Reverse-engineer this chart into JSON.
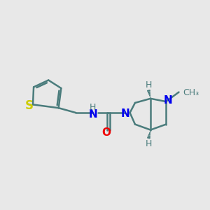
{
  "bg_color": "#e8e8e8",
  "bond_color": "#4a7c7c",
  "bond_width": 1.8,
  "wedge_color": "#4a7c7c",
  "N_color": "#0000ee",
  "O_color": "#ee0000",
  "S_color": "#cccc00",
  "C_color": "#4a7c7c",
  "font_size": 10,
  "small_font_size": 8,
  "xlim": [
    0.0,
    4.8
  ],
  "ylim": [
    0.4,
    3.2
  ],
  "figsize": [
    3.0,
    3.0
  ],
  "dpi": 100
}
